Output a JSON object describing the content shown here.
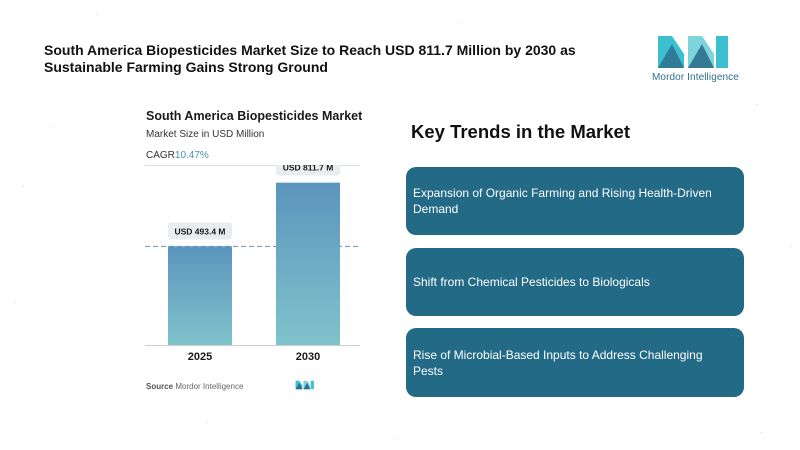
{
  "headline": "South America Biopesticides Market Size to Reach USD 811.7 Million by 2030 as Sustainable Farming Gains Strong Ground",
  "brand": {
    "name": "Mordor Intelligence",
    "logo_icon": "mordor-intelligence-logo",
    "colors": {
      "teal": "#3cc0cf",
      "navy": "#2e6f8e",
      "light": "#7fd3dc"
    }
  },
  "chart": {
    "title": "South America Biopesticides Market",
    "subtitle": "Market Size in USD Million",
    "cagr_label": "CAGR",
    "cagr_value": "10.47%",
    "source_label": "Source",
    "source_value": "Mordor Intelligence"
  },
  "chart_data": {
    "type": "bar",
    "title": "South America Biopesticides Market",
    "ylabel": "Market Size in USD Million",
    "categories": [
      "2025",
      "2030"
    ],
    "values": [
      493.4,
      811.7
    ],
    "data_labels": [
      "USD 493.4 M",
      "USD 811.7 M"
    ],
    "ylim": [
      0,
      900
    ],
    "reference_line": 493.4,
    "colors": {
      "bar_top": "#5b95bd",
      "bar_bottom": "#7fc3cc",
      "label_bg": "#e8eef0",
      "dash": "#5b95bd"
    }
  },
  "trends": {
    "title": "Key Trends in the Market",
    "items": [
      "Expansion of Organic Farming and Rising Health-Driven Demand",
      "Shift from Chemical Pesticides to Biologicals",
      "Rise of Microbial-Based Inputs to Address Challenging Pests"
    ],
    "box_color": "#236a87"
  }
}
